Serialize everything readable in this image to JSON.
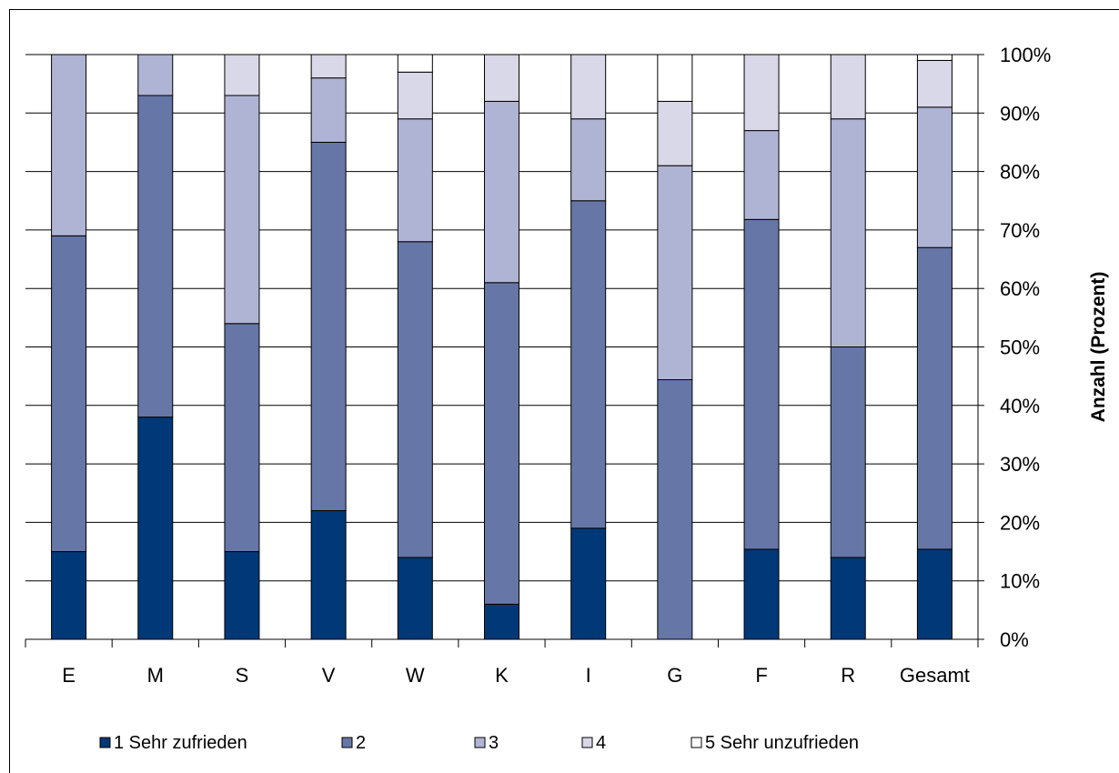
{
  "chart_data": {
    "type": "bar",
    "stacked": true,
    "percent_stacked": true,
    "categories": [
      "E",
      "M",
      "S",
      "V",
      "W",
      "K",
      "I",
      "G",
      "F",
      "R",
      "Gesamt"
    ],
    "series": [
      {
        "name": "1 Sehr zufrieden",
        "color": "#003878",
        "values": [
          15,
          38,
          15,
          22,
          14,
          6,
          19,
          0,
          15.4,
          14,
          15.4
        ]
      },
      {
        "name": "2",
        "color": "#6676a6",
        "values": [
          54,
          55,
          39,
          63,
          54,
          55,
          56,
          44.4,
          56.4,
          36,
          51.6
        ]
      },
      {
        "name": "3",
        "color": "#b0b4d4",
        "values": [
          31,
          7,
          39,
          11,
          21,
          31,
          14,
          36.6,
          15.2,
          39,
          24
        ]
      },
      {
        "name": "4",
        "color": "#d8d8e8",
        "values": [
          0,
          0,
          7,
          4,
          8,
          8,
          11,
          11,
          13,
          11,
          8
        ]
      },
      {
        "name": "5 Sehr unzufrieden",
        "color": "#ffffff",
        "values": [
          0,
          0,
          0,
          0,
          3,
          0,
          0,
          8,
          0,
          0,
          1
        ]
      }
    ],
    "y_ticks": [
      "0%",
      "10%",
      "20%",
      "30%",
      "40%",
      "50%",
      "60%",
      "70%",
      "80%",
      "90%",
      "100%"
    ],
    "ylim": [
      0,
      100
    ],
    "ylabel": "Anzahl (Prozent)",
    "xlabel": "",
    "title": "",
    "y_axis_side": "right",
    "grid": true,
    "legend_position": "bottom"
  }
}
